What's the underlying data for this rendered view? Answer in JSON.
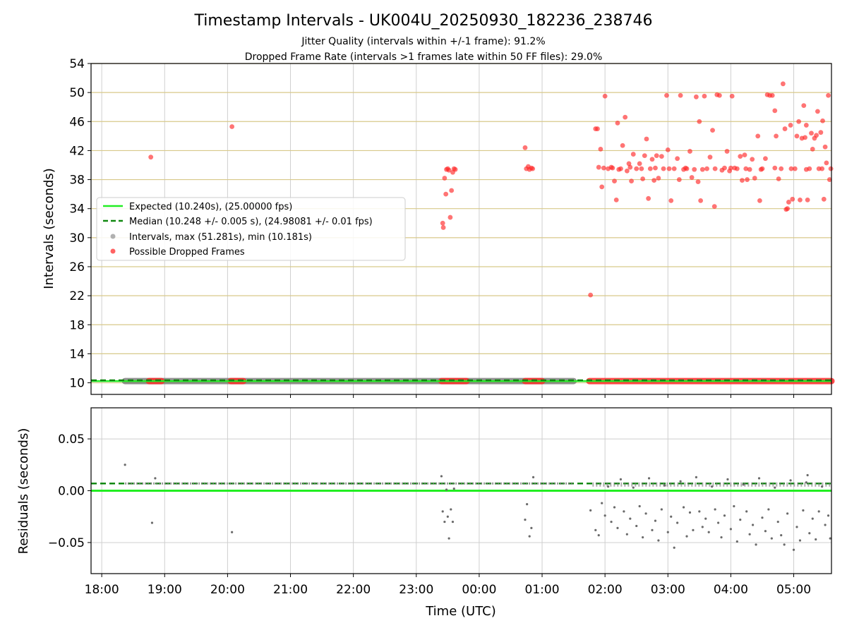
{
  "figure": {
    "title": "Timestamp Intervals - UK004U_20250930_182236_238746",
    "subtitle_1": "Jitter Quality (intervals within +/-1 frame): 91.2%",
    "subtitle_2": "Dropped Frame Rate (intervals >1 frames late within 50 FF files): 29.0%",
    "xlabel": "Time (UTC)"
  },
  "chart_data": [
    {
      "id": "intervals",
      "type": "scatter",
      "ylabel": "Intervals (seconds)",
      "x_unit": "hours since 18:00 UTC",
      "xlim": [
        -0.17,
        11.6
      ],
      "ylim": [
        8.4,
        54
      ],
      "yticks": [
        10,
        14,
        18,
        22,
        26,
        30,
        34,
        38,
        42,
        46,
        50,
        54
      ],
      "xticks": [
        0,
        1,
        2,
        3,
        4,
        5,
        6,
        7,
        8,
        9,
        10,
        11
      ],
      "xtick_labels": [
        "18:00",
        "19:00",
        "20:00",
        "21:00",
        "22:00",
        "23:00",
        "00:00",
        "01:00",
        "02:00",
        "03:00",
        "04:00",
        "05:00"
      ],
      "grid": true,
      "legend": {
        "placement": "center-left",
        "entries": [
          {
            "label": "Expected (10.240s), (25.00000 fps)",
            "style": "solid-line",
            "color": "#22ee22"
          },
          {
            "label": "Median (10.248 +/- 0.005 s), (24.98081 +/- 0.01 fps)",
            "style": "dashed-line",
            "color": "#118811"
          },
          {
            "label": "Intervals, max (51.281s), min (10.181s)",
            "style": "marker",
            "color": "#9e9e9e"
          },
          {
            "label": "Possible Dropped Frames",
            "style": "marker",
            "color": "#ff3b3b"
          }
        ]
      },
      "expected_line": 10.24,
      "median_line": 10.248,
      "normal_interval_band": {
        "x_start": 0.37,
        "x_end": 7.5,
        "y": 10.24
      },
      "dropped_frame_runs_at_10s": [
        [
          0.75,
          0.95
        ],
        [
          2.05,
          2.25
        ],
        [
          5.4,
          5.8
        ],
        [
          6.73,
          7.0
        ],
        [
          7.75,
          11.6
        ]
      ],
      "dropped_frames": [
        {
          "x": 0.78,
          "y": 41.1
        },
        {
          "x": 2.07,
          "y": 45.3
        },
        {
          "x": 5.42,
          "y": 32.0
        },
        {
          "x": 5.43,
          "y": 31.4
        },
        {
          "x": 5.45,
          "y": 38.2
        },
        {
          "x": 5.47,
          "y": 36.0
        },
        {
          "x": 5.48,
          "y": 39.4
        },
        {
          "x": 5.5,
          "y": 39.5
        },
        {
          "x": 5.52,
          "y": 39.3
        },
        {
          "x": 5.54,
          "y": 32.8
        },
        {
          "x": 5.56,
          "y": 36.5
        },
        {
          "x": 5.58,
          "y": 39.0
        },
        {
          "x": 5.6,
          "y": 39.5
        },
        {
          "x": 5.62,
          "y": 39.4
        },
        {
          "x": 6.73,
          "y": 42.4
        },
        {
          "x": 6.75,
          "y": 39.5
        },
        {
          "x": 6.78,
          "y": 39.8
        },
        {
          "x": 6.8,
          "y": 39.4
        },
        {
          "x": 6.83,
          "y": 39.6
        },
        {
          "x": 6.85,
          "y": 39.5
        },
        {
          "x": 7.77,
          "y": 22.1
        },
        {
          "x": 7.85,
          "y": 45.0
        },
        {
          "x": 7.88,
          "y": 45.0
        },
        {
          "x": 7.9,
          "y": 39.7
        },
        {
          "x": 7.93,
          "y": 42.2
        },
        {
          "x": 7.95,
          "y": 37.0
        },
        {
          "x": 7.98,
          "y": 39.6
        },
        {
          "x": 8.0,
          "y": 49.5
        },
        {
          "x": 8.05,
          "y": 39.5
        },
        {
          "x": 8.1,
          "y": 39.7
        },
        {
          "x": 8.15,
          "y": 37.8
        },
        {
          "x": 8.18,
          "y": 35.2
        },
        {
          "x": 8.2,
          "y": 45.8
        },
        {
          "x": 8.25,
          "y": 39.5
        },
        {
          "x": 8.28,
          "y": 42.7
        },
        {
          "x": 8.32,
          "y": 46.6
        },
        {
          "x": 8.35,
          "y": 39.2
        },
        {
          "x": 8.38,
          "y": 40.2
        },
        {
          "x": 8.42,
          "y": 37.8
        },
        {
          "x": 8.45,
          "y": 41.5
        },
        {
          "x": 8.5,
          "y": 39.5
        },
        {
          "x": 8.55,
          "y": 40.2
        },
        {
          "x": 8.6,
          "y": 38.1
        },
        {
          "x": 8.63,
          "y": 41.3
        },
        {
          "x": 8.66,
          "y": 43.6
        },
        {
          "x": 8.69,
          "y": 35.4
        },
        {
          "x": 8.72,
          "y": 39.5
        },
        {
          "x": 8.75,
          "y": 40.8
        },
        {
          "x": 8.78,
          "y": 37.9
        },
        {
          "x": 8.82,
          "y": 41.3
        },
        {
          "x": 8.85,
          "y": 38.2
        },
        {
          "x": 8.9,
          "y": 41.2
        },
        {
          "x": 8.93,
          "y": 39.5
        },
        {
          "x": 8.98,
          "y": 49.6
        },
        {
          "x": 9.0,
          "y": 42.1
        },
        {
          "x": 9.05,
          "y": 35.1
        },
        {
          "x": 9.1,
          "y": 39.5
        },
        {
          "x": 9.15,
          "y": 40.9
        },
        {
          "x": 9.18,
          "y": 38.0
        },
        {
          "x": 9.2,
          "y": 49.6
        },
        {
          "x": 9.25,
          "y": 39.4
        },
        {
          "x": 9.3,
          "y": 39.5
        },
        {
          "x": 9.35,
          "y": 41.9
        },
        {
          "x": 9.38,
          "y": 38.3
        },
        {
          "x": 9.42,
          "y": 39.4
        },
        {
          "x": 9.45,
          "y": 49.4
        },
        {
          "x": 9.48,
          "y": 37.7
        },
        {
          "x": 9.5,
          "y": 46.0
        },
        {
          "x": 9.52,
          "y": 35.1
        },
        {
          "x": 9.58,
          "y": 49.5
        },
        {
          "x": 9.62,
          "y": 39.5
        },
        {
          "x": 9.67,
          "y": 41.1
        },
        {
          "x": 9.71,
          "y": 44.8
        },
        {
          "x": 9.74,
          "y": 34.3
        },
        {
          "x": 9.78,
          "y": 49.7
        },
        {
          "x": 9.82,
          "y": 49.6
        },
        {
          "x": 9.86,
          "y": 39.3
        },
        {
          "x": 9.9,
          "y": 39.6
        },
        {
          "x": 9.94,
          "y": 41.9
        },
        {
          "x": 9.98,
          "y": 39.2
        },
        {
          "x": 10.02,
          "y": 49.5
        },
        {
          "x": 10.06,
          "y": 39.6
        },
        {
          "x": 10.1,
          "y": 39.5
        },
        {
          "x": 10.15,
          "y": 41.2
        },
        {
          "x": 10.18,
          "y": 37.9
        },
        {
          "x": 10.22,
          "y": 41.4
        },
        {
          "x": 10.26,
          "y": 38.0
        },
        {
          "x": 10.3,
          "y": 39.4
        },
        {
          "x": 10.34,
          "y": 40.8
        },
        {
          "x": 10.38,
          "y": 38.2
        },
        {
          "x": 10.43,
          "y": 44.0
        },
        {
          "x": 10.46,
          "y": 35.1
        },
        {
          "x": 10.5,
          "y": 39.5
        },
        {
          "x": 10.55,
          "y": 40.9
        },
        {
          "x": 10.58,
          "y": 49.7
        },
        {
          "x": 10.62,
          "y": 49.6
        },
        {
          "x": 10.66,
          "y": 49.6
        },
        {
          "x": 10.7,
          "y": 47.5
        },
        {
          "x": 10.72,
          "y": 44.0
        },
        {
          "x": 10.76,
          "y": 38.1
        },
        {
          "x": 10.8,
          "y": 39.5
        },
        {
          "x": 10.83,
          "y": 51.2
        },
        {
          "x": 10.86,
          "y": 45.0
        },
        {
          "x": 10.88,
          "y": 33.9
        },
        {
          "x": 10.9,
          "y": 34.0
        },
        {
          "x": 10.92,
          "y": 34.9
        },
        {
          "x": 10.95,
          "y": 45.5
        },
        {
          "x": 10.98,
          "y": 35.3
        },
        {
          "x": 11.02,
          "y": 39.5
        },
        {
          "x": 11.05,
          "y": 44.0
        },
        {
          "x": 11.08,
          "y": 46.0
        },
        {
          "x": 11.1,
          "y": 35.2
        },
        {
          "x": 11.13,
          "y": 43.7
        },
        {
          "x": 11.16,
          "y": 48.2
        },
        {
          "x": 11.18,
          "y": 43.8
        },
        {
          "x": 11.2,
          "y": 45.5
        },
        {
          "x": 11.22,
          "y": 35.2
        },
        {
          "x": 11.25,
          "y": 39.5
        },
        {
          "x": 11.28,
          "y": 44.4
        },
        {
          "x": 11.3,
          "y": 42.2
        },
        {
          "x": 11.33,
          "y": 43.7
        },
        {
          "x": 11.36,
          "y": 44.1
        },
        {
          "x": 11.38,
          "y": 47.4
        },
        {
          "x": 11.4,
          "y": 39.5
        },
        {
          "x": 11.43,
          "y": 44.5
        },
        {
          "x": 11.46,
          "y": 46.1
        },
        {
          "x": 11.48,
          "y": 35.3
        },
        {
          "x": 11.5,
          "y": 42.5
        },
        {
          "x": 11.52,
          "y": 40.3
        },
        {
          "x": 11.55,
          "y": 49.6
        },
        {
          "x": 11.57,
          "y": 38.0
        },
        {
          "x": 11.59,
          "y": 39.5
        },
        {
          "x": 8.12,
          "y": 39.6
        },
        {
          "x": 8.22,
          "y": 39.4
        },
        {
          "x": 8.4,
          "y": 39.7
        },
        {
          "x": 8.58,
          "y": 39.5
        },
        {
          "x": 8.8,
          "y": 39.6
        },
        {
          "x": 9.02,
          "y": 39.5
        },
        {
          "x": 9.28,
          "y": 39.6
        },
        {
          "x": 9.55,
          "y": 39.4
        },
        {
          "x": 9.75,
          "y": 39.5
        },
        {
          "x": 10.0,
          "y": 39.6
        },
        {
          "x": 10.24,
          "y": 39.5
        },
        {
          "x": 10.48,
          "y": 39.4
        },
        {
          "x": 10.7,
          "y": 39.6
        },
        {
          "x": 10.96,
          "y": 39.5
        },
        {
          "x": 11.2,
          "y": 39.4
        },
        {
          "x": 11.45,
          "y": 39.5
        }
      ]
    },
    {
      "id": "residuals",
      "type": "scatter",
      "ylabel": "Residuals (seconds)",
      "x_unit": "hours since 18:00 UTC",
      "xlim": [
        -0.17,
        11.6
      ],
      "ylim": [
        -0.08,
        0.08
      ],
      "yticks": [
        -0.05,
        0.0,
        0.05
      ],
      "ytick_labels": [
        "−0.05",
        "0.00",
        "0.05"
      ],
      "grid": true,
      "expected_line": 0.0,
      "median_line": 0.007,
      "normal_residual_band": {
        "x_start": 0.37,
        "x_end": 7.5,
        "y": 0.007
      },
      "points": [
        {
          "x": 0.37,
          "y": 0.025
        },
        {
          "x": 0.8,
          "y": -0.031
        },
        {
          "x": 0.85,
          "y": 0.012
        },
        {
          "x": 2.07,
          "y": -0.04
        },
        {
          "x": 5.4,
          "y": 0.014
        },
        {
          "x": 5.42,
          "y": -0.02
        },
        {
          "x": 5.45,
          "y": -0.03
        },
        {
          "x": 5.48,
          "y": 0.001
        },
        {
          "x": 5.5,
          "y": -0.025
        },
        {
          "x": 5.52,
          "y": -0.046
        },
        {
          "x": 5.55,
          "y": -0.018
        },
        {
          "x": 5.58,
          "y": -0.03
        },
        {
          "x": 5.6,
          "y": 0.002
        },
        {
          "x": 6.73,
          "y": -0.028
        },
        {
          "x": 6.76,
          "y": -0.013
        },
        {
          "x": 6.8,
          "y": -0.044
        },
        {
          "x": 6.83,
          "y": -0.036
        },
        {
          "x": 6.86,
          "y": 0.013
        },
        {
          "x": 7.77,
          "y": -0.019
        },
        {
          "x": 7.85,
          "y": -0.038
        },
        {
          "x": 7.9,
          "y": -0.043
        },
        {
          "x": 7.95,
          "y": -0.012
        },
        {
          "x": 8.0,
          "y": -0.024
        },
        {
          "x": 8.05,
          "y": 0.004
        },
        {
          "x": 8.1,
          "y": -0.03
        },
        {
          "x": 8.15,
          "y": -0.016
        },
        {
          "x": 8.2,
          "y": -0.036
        },
        {
          "x": 8.25,
          "y": 0.011
        },
        {
          "x": 8.3,
          "y": -0.02
        },
        {
          "x": 8.35,
          "y": -0.042
        },
        {
          "x": 8.4,
          "y": -0.027
        },
        {
          "x": 8.45,
          "y": 0.003
        },
        {
          "x": 8.5,
          "y": -0.034
        },
        {
          "x": 8.55,
          "y": -0.015
        },
        {
          "x": 8.6,
          "y": -0.045
        },
        {
          "x": 8.65,
          "y": -0.022
        },
        {
          "x": 8.7,
          "y": 0.012
        },
        {
          "x": 8.75,
          "y": -0.038
        },
        {
          "x": 8.8,
          "y": -0.029
        },
        {
          "x": 8.85,
          "y": -0.048
        },
        {
          "x": 8.9,
          "y": -0.018
        },
        {
          "x": 8.95,
          "y": 0.005
        },
        {
          "x": 9.0,
          "y": -0.04
        },
        {
          "x": 9.05,
          "y": -0.025
        },
        {
          "x": 9.1,
          "y": -0.055
        },
        {
          "x": 9.15,
          "y": -0.031
        },
        {
          "x": 9.2,
          "y": 0.009
        },
        {
          "x": 9.25,
          "y": -0.016
        },
        {
          "x": 9.3,
          "y": -0.044
        },
        {
          "x": 9.35,
          "y": -0.021
        },
        {
          "x": 9.4,
          "y": -0.038
        },
        {
          "x": 9.45,
          "y": 0.013
        },
        {
          "x": 9.5,
          "y": -0.02
        },
        {
          "x": 9.55,
          "y": -0.035
        },
        {
          "x": 9.6,
          "y": -0.027
        },
        {
          "x": 9.65,
          "y": -0.04
        },
        {
          "x": 9.7,
          "y": 0.004
        },
        {
          "x": 9.75,
          "y": -0.018
        },
        {
          "x": 9.8,
          "y": -0.031
        },
        {
          "x": 9.85,
          "y": -0.045
        },
        {
          "x": 9.9,
          "y": -0.024
        },
        {
          "x": 9.95,
          "y": 0.011
        },
        {
          "x": 10.0,
          "y": -0.037
        },
        {
          "x": 10.05,
          "y": -0.015
        },
        {
          "x": 10.1,
          "y": -0.049
        },
        {
          "x": 10.15,
          "y": -0.028
        },
        {
          "x": 10.2,
          "y": 0.006
        },
        {
          "x": 10.25,
          "y": -0.02
        },
        {
          "x": 10.3,
          "y": -0.042
        },
        {
          "x": 10.35,
          "y": -0.033
        },
        {
          "x": 10.4,
          "y": -0.052
        },
        {
          "x": 10.45,
          "y": 0.012
        },
        {
          "x": 10.5,
          "y": -0.026
        },
        {
          "x": 10.55,
          "y": -0.039
        },
        {
          "x": 10.6,
          "y": -0.018
        },
        {
          "x": 10.65,
          "y": -0.046
        },
        {
          "x": 10.7,
          "y": 0.003
        },
        {
          "x": 10.75,
          "y": -0.03
        },
        {
          "x": 10.8,
          "y": -0.043
        },
        {
          "x": 10.85,
          "y": -0.052
        },
        {
          "x": 10.9,
          "y": -0.022
        },
        {
          "x": 10.95,
          "y": 0.01
        },
        {
          "x": 11.0,
          "y": -0.057
        },
        {
          "x": 11.05,
          "y": -0.035
        },
        {
          "x": 11.1,
          "y": -0.048
        },
        {
          "x": 11.15,
          "y": -0.019
        },
        {
          "x": 11.2,
          "y": 0.008
        },
        {
          "x": 11.22,
          "y": 0.015
        },
        {
          "x": 11.25,
          "y": -0.041
        },
        {
          "x": 11.3,
          "y": -0.027
        },
        {
          "x": 11.35,
          "y": -0.047
        },
        {
          "x": 11.4,
          "y": -0.02
        },
        {
          "x": 11.45,
          "y": 0.004
        },
        {
          "x": 11.5,
          "y": -0.033
        },
        {
          "x": 11.55,
          "y": -0.024
        },
        {
          "x": 11.58,
          "y": -0.046
        }
      ]
    }
  ]
}
